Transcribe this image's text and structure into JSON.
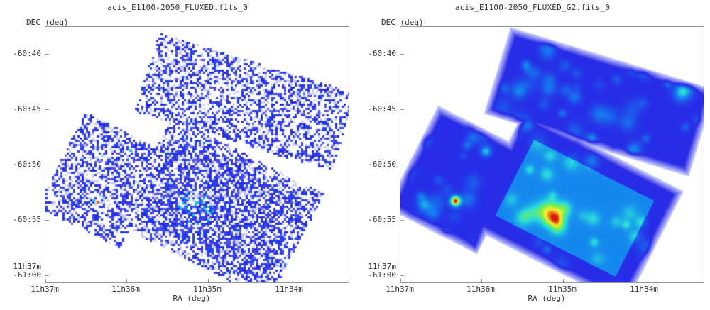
{
  "panels": [
    {
      "title": "acis_E1100-2050_FLUXED.fits_0",
      "ylabel": "DEC (deg)",
      "xlabel": "RA (deg)",
      "yticks": [
        "-60:40",
        "-60:45",
        "-60:50",
        "-60:55",
        "11h37m",
        "-61:00"
      ],
      "xticks": [
        "11h37m",
        "11h36m",
        "11h35m",
        "11h34m"
      ],
      "style": "pixelated"
    },
    {
      "title": "acis_E1100-2050_FLUXED_G2.fits_0",
      "ylabel": "DEC (deg)",
      "xlabel": "RA (deg)",
      "yticks": [
        "-60:40",
        "-60:45",
        "-60:50",
        "-60:55",
        "11h37m",
        "-61:00"
      ],
      "xticks": [
        "11h37m",
        "11h36m",
        "11h35m",
        "11h34m"
      ],
      "style": "smoothed"
    }
  ]
}
